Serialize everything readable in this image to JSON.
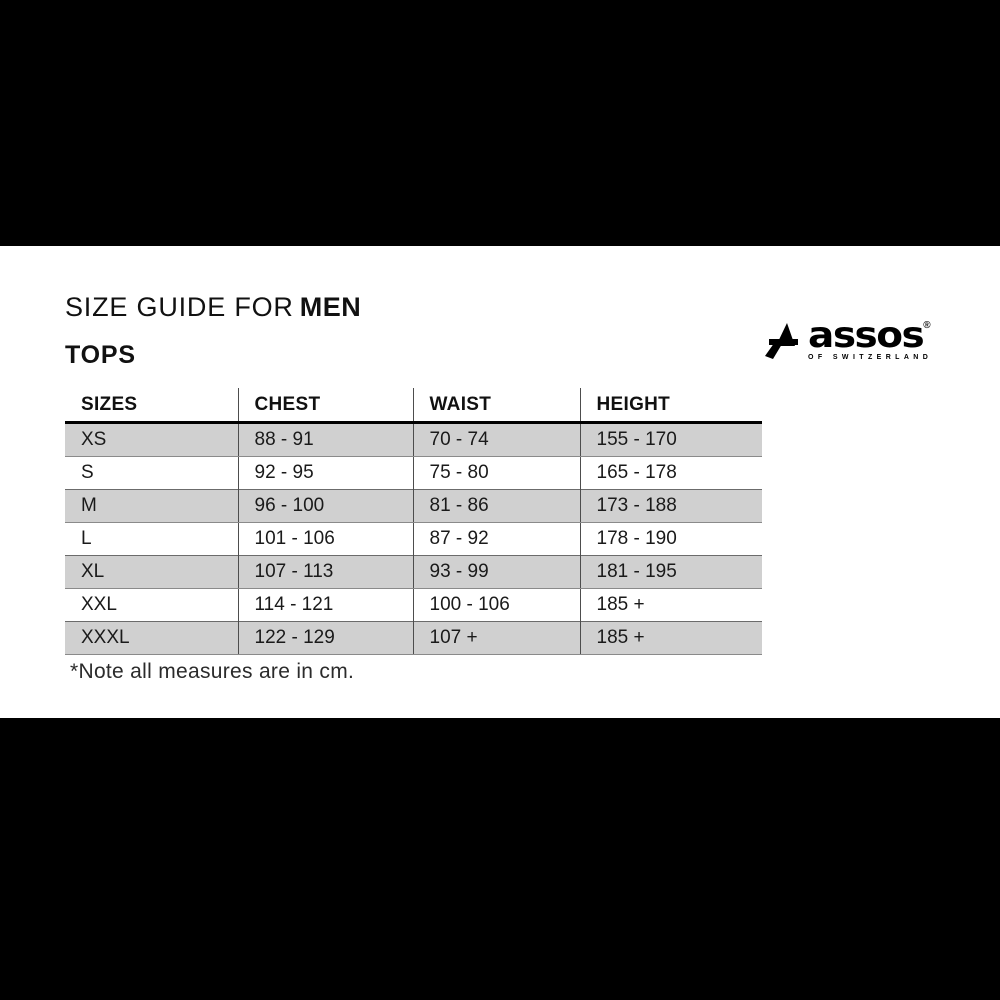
{
  "header": {
    "title_prefix": "SIZE GUIDE FOR",
    "title_emphasis": "MEN",
    "section": "TOPS"
  },
  "logo": {
    "brand": "assos",
    "registered": "®",
    "tagline": "OF SWITZERLAND"
  },
  "size_table": {
    "columns": [
      "SIZES",
      "CHEST",
      "WAIST",
      "HEIGHT"
    ],
    "rows": [
      {
        "size": "XS",
        "chest": "88 - 91",
        "waist": "70 - 74",
        "height": "155 - 170"
      },
      {
        "size": "S",
        "chest": "92 - 95",
        "waist": "75 - 80",
        "height": "165 - 178"
      },
      {
        "size": "M",
        "chest": "96 - 100",
        "waist": "81 - 86",
        "height": "173 - 188"
      },
      {
        "size": "L",
        "chest": "101 - 106",
        "waist": "87 - 92",
        "height": "178 - 190"
      },
      {
        "size": "XL",
        "chest": "107 - 113",
        "waist": "93 - 99",
        "height": "181 - 195"
      },
      {
        "size": "XXL",
        "chest": "114 - 121",
        "waist": "100 - 106",
        "height": "185 +"
      },
      {
        "size": "XXXL",
        "chest": "122 - 129",
        "waist": "107 +",
        "height": "185 +"
      }
    ],
    "zebra_start": "gray"
  },
  "note": "*Note all measures are in cm.",
  "colors": {
    "letterbox": "#000000",
    "row_shade": "#d0d0d0",
    "text": "#1a1a1a"
  }
}
